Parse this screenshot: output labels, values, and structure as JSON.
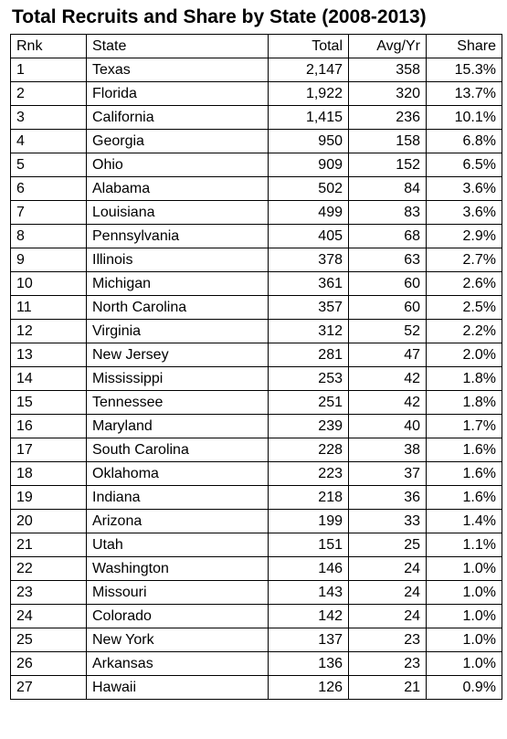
{
  "chart_data": {
    "type": "table",
    "title": "Total Recruits and Share by State (2008-2013)",
    "columns": [
      "Rnk",
      "State",
      "Total",
      "Avg/Yr",
      "Share"
    ],
    "rows": [
      [
        "1",
        "Texas",
        "2,147",
        "358",
        "15.3%"
      ],
      [
        "2",
        "Florida",
        "1,922",
        "320",
        "13.7%"
      ],
      [
        "3",
        "California",
        "1,415",
        "236",
        "10.1%"
      ],
      [
        "4",
        "Georgia",
        "950",
        "158",
        "6.8%"
      ],
      [
        "5",
        "Ohio",
        "909",
        "152",
        "6.5%"
      ],
      [
        "6",
        "Alabama",
        "502",
        "84",
        "3.6%"
      ],
      [
        "7",
        "Louisiana",
        "499",
        "83",
        "3.6%"
      ],
      [
        "8",
        "Pennsylvania",
        "405",
        "68",
        "2.9%"
      ],
      [
        "9",
        "Illinois",
        "378",
        "63",
        "2.7%"
      ],
      [
        "10",
        "Michigan",
        "361",
        "60",
        "2.6%"
      ],
      [
        "11",
        "North Carolina",
        "357",
        "60",
        "2.5%"
      ],
      [
        "12",
        "Virginia",
        "312",
        "52",
        "2.2%"
      ],
      [
        "13",
        "New Jersey",
        "281",
        "47",
        "2.0%"
      ],
      [
        "14",
        "Mississippi",
        "253",
        "42",
        "1.8%"
      ],
      [
        "15",
        "Tennessee",
        "251",
        "42",
        "1.8%"
      ],
      [
        "16",
        "Maryland",
        "239",
        "40",
        "1.7%"
      ],
      [
        "17",
        "South Carolina",
        "228",
        "38",
        "1.6%"
      ],
      [
        "18",
        "Oklahoma",
        "223",
        "37",
        "1.6%"
      ],
      [
        "19",
        "Indiana",
        "218",
        "36",
        "1.6%"
      ],
      [
        "20",
        "Arizona",
        "199",
        "33",
        "1.4%"
      ],
      [
        "21",
        "Utah",
        "151",
        "25",
        "1.1%"
      ],
      [
        "22",
        "Washington",
        "146",
        "24",
        "1.0%"
      ],
      [
        "23",
        "Missouri",
        "143",
        "24",
        "1.0%"
      ],
      [
        "24",
        "Colorado",
        "142",
        "24",
        "1.0%"
      ],
      [
        "25",
        "New York",
        "137",
        "23",
        "1.0%"
      ],
      [
        "26",
        "Arkansas",
        "136",
        "23",
        "1.0%"
      ],
      [
        "27",
        "Hawaii",
        "126",
        "21",
        "0.9%"
      ]
    ]
  }
}
